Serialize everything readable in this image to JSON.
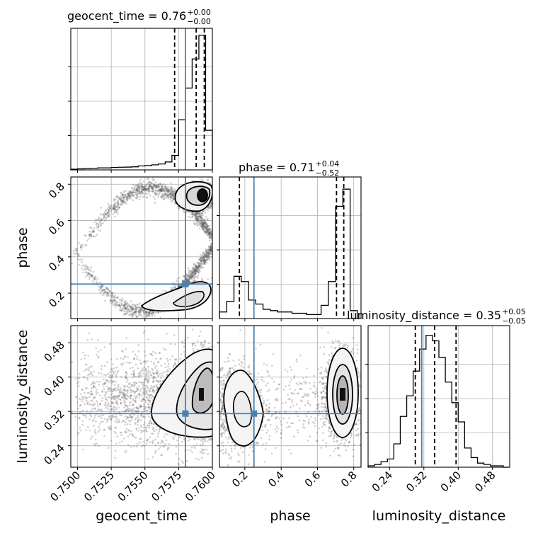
{
  "chart_data": {
    "type": "corner",
    "parameters": [
      {
        "name": "geocent_time",
        "range": [
          0.7495,
          0.76
        ],
        "ticks": [
          0.75,
          0.7525,
          0.755,
          0.7575,
          0.76
        ],
        "tick_labels": [
          "0.7500",
          "0.7525",
          "0.7550",
          "0.7575",
          "0.7600"
        ],
        "truth": 0.758,
        "quantiles": [
          0.7572,
          0.7588,
          0.7594
        ]
      },
      {
        "name": "phase",
        "range": [
          0.06,
          0.84
        ],
        "ticks": [
          0.2,
          0.4,
          0.6,
          0.8
        ],
        "tick_labels": [
          "0.2",
          "0.4",
          "0.6",
          "0.8"
        ],
        "truth": 0.25,
        "quantiles": [
          0.17,
          0.705,
          0.745
        ]
      },
      {
        "name": "luminosity_distance",
        "range": [
          0.19,
          0.52
        ],
        "ticks": [
          0.24,
          0.32,
          0.4,
          0.48
        ],
        "tick_labels": [
          "0.24",
          "0.32",
          "0.40",
          "0.48"
        ],
        "truth": 0.315,
        "quantiles": [
          0.3,
          0.345,
          0.395
        ]
      }
    ],
    "titles": [
      {
        "main": "geocent_time = 0.76",
        "upper": "+0.00",
        "lower": "−0.00"
      },
      {
        "main": "phase = 0.71",
        "upper": "+0.04",
        "lower": "−0.52"
      },
      {
        "main": "luminosity_distance = 0.35",
        "upper": "+0.05",
        "lower": "−0.05"
      }
    ],
    "histograms": [
      {
        "param": "geocent_time",
        "bins": [
          0.7495,
          0.75,
          0.7505,
          0.751,
          0.7515,
          0.752,
          0.7525,
          0.753,
          0.7535,
          0.754,
          0.7545,
          0.755,
          0.7555,
          0.756,
          0.7565,
          0.757,
          0.7575,
          0.758,
          0.7585,
          0.759,
          0.7595,
          0.76
        ],
        "counts": [
          0.5,
          0.8,
          1.0,
          1.2,
          1.5,
          1.5,
          1.8,
          2.0,
          2.1,
          2.3,
          3.0,
          3.3,
          3.8,
          4.5,
          6.0,
          11.0,
          38.0,
          62.0,
          84.0,
          102.0,
          30.0
        ]
      },
      {
        "param": "phase",
        "bins": [
          0.06,
          0.1,
          0.14,
          0.18,
          0.22,
          0.26,
          0.3,
          0.34,
          0.38,
          0.42,
          0.46,
          0.5,
          0.54,
          0.58,
          0.62,
          0.66,
          0.7,
          0.74,
          0.78,
          0.82
        ],
        "counts": [
          5,
          13,
          32,
          28,
          14,
          11,
          7,
          6,
          5,
          5,
          4,
          4,
          3,
          3,
          10,
          28,
          85,
          98,
          6
        ]
      },
      {
        "param": "luminosity_distance",
        "bins": [
          0.19,
          0.205,
          0.22,
          0.235,
          0.25,
          0.265,
          0.28,
          0.295,
          0.31,
          0.325,
          0.34,
          0.355,
          0.37,
          0.385,
          0.4,
          0.415,
          0.43,
          0.445,
          0.46,
          0.475,
          0.49,
          0.505,
          0.52
        ],
        "counts": [
          1,
          2,
          4,
          6,
          17,
          37,
          52,
          70,
          86,
          96,
          92,
          80,
          62,
          47,
          33,
          14,
          7,
          3,
          2,
          1,
          1,
          0
        ]
      }
    ],
    "joint_samples": [
      {
        "x": "geocent_time",
        "y": "phase",
        "mode": [
          0.7594,
          0.73
        ],
        "secondary": [
          0.7585,
          0.22
        ]
      },
      {
        "x": "geocent_time",
        "y": "luminosity_distance",
        "mode": [
          0.7594,
          0.355
        ]
      },
      {
        "x": "phase",
        "y": "luminosity_distance",
        "modes": [
          [
            0.73,
            0.355
          ],
          [
            0.15,
            0.33
          ]
        ]
      }
    ],
    "truth_color": "#4682b4",
    "grid": true
  }
}
